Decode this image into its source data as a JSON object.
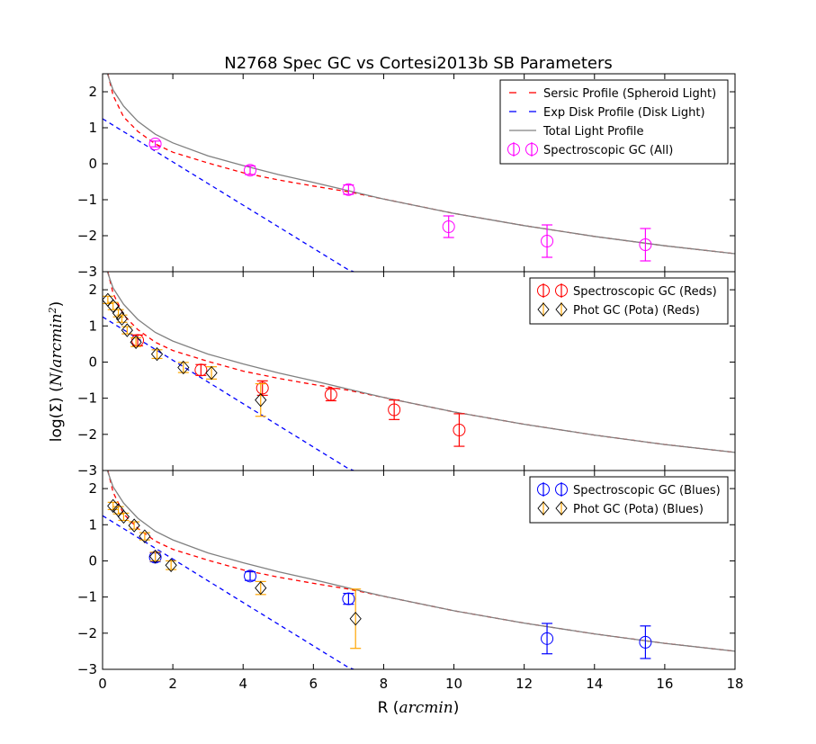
{
  "chart_data": {
    "type": "scatter",
    "title": "N2768 Spec GC vs Cortesi2013b SB Parameters",
    "xlabel": "R (arcmin)",
    "ylabel": "log(Σ) (N/arcmin²)",
    "xlim": [
      0,
      18
    ],
    "ylim": [
      -3,
      2.5
    ],
    "xticks": [
      0,
      2,
      4,
      6,
      8,
      10,
      12,
      14,
      16,
      18
    ],
    "yticks": [
      2,
      1,
      0,
      -1,
      -2,
      -3
    ],
    "grid": false,
    "legend_placement": "top-right",
    "colors": {
      "sersic": "#ff0000",
      "exp_disk": "#0000ff",
      "total": "#808080",
      "spec_all": "#ff00ff",
      "spec_reds": "#ff0000",
      "spec_blues": "#0000ff",
      "phot": "#ffa500"
    },
    "models": {
      "total_light": [
        [
          0.1,
          2.6
        ],
        [
          0.3,
          2.05
        ],
        [
          0.6,
          1.6
        ],
        [
          1,
          1.18
        ],
        [
          1.5,
          0.82
        ],
        [
          2,
          0.58
        ],
        [
          3,
          0.22
        ],
        [
          4,
          -0.05
        ],
        [
          5,
          -0.3
        ],
        [
          6,
          -0.52
        ],
        [
          7,
          -0.75
        ],
        [
          8,
          -0.98
        ],
        [
          10,
          -1.38
        ],
        [
          12,
          -1.72
        ],
        [
          14,
          -2.02
        ],
        [
          16,
          -2.28
        ],
        [
          18,
          -2.5
        ]
      ],
      "sersic": [
        [
          0.15,
          2.5
        ],
        [
          0.3,
          1.9
        ],
        [
          0.6,
          1.3
        ],
        [
          1,
          0.9
        ],
        [
          1.5,
          0.55
        ],
        [
          2,
          0.32
        ],
        [
          3,
          0.02
        ],
        [
          4,
          -0.25
        ],
        [
          5,
          -0.45
        ],
        [
          6,
          -0.62
        ],
        [
          7,
          -0.78
        ],
        [
          8,
          -0.98
        ],
        [
          10,
          -1.38
        ],
        [
          12,
          -1.72
        ],
        [
          14,
          -2.02
        ],
        [
          16,
          -2.28
        ],
        [
          18,
          -2.5
        ]
      ],
      "exp_disk": [
        [
          0,
          1.25
        ],
        [
          1,
          0.65
        ],
        [
          2,
          0.05
        ],
        [
          3,
          -0.55
        ],
        [
          4,
          -1.15
        ],
        [
          5,
          -1.75
        ],
        [
          6,
          -2.35
        ],
        [
          7,
          -2.95
        ],
        [
          7.15,
          -3.0
        ]
      ]
    },
    "panels": [
      {
        "legend": [
          "Sersic Profile (Spheroid Light)",
          "Exp Disk Profile (Disk Light)",
          "Total Light Profile",
          "Spectroscopic GC (All)"
        ],
        "series": [
          {
            "name": "Spectroscopic GC (All)",
            "marker": "circle",
            "color": "#ff00ff",
            "points": [
              [
                1.5,
                0.55,
                0.08
              ],
              [
                4.2,
                -0.18,
                0.12
              ],
              [
                7.0,
                -0.72,
                0.13
              ],
              [
                9.85,
                -1.75,
                0.3
              ],
              [
                12.65,
                -2.15,
                0.45
              ],
              [
                15.45,
                -2.25,
                0.45
              ]
            ]
          }
        ]
      },
      {
        "legend": [
          "Spectroscopic GC (Reds)",
          "Phot GC (Pota) (Reds)"
        ],
        "series": [
          {
            "name": "Spectroscopic GC (Reds)",
            "marker": "circle",
            "color": "#ff0000",
            "points": [
              [
                1.0,
                0.6,
                0.15
              ],
              [
                2.8,
                -0.22,
                0.15
              ],
              [
                4.55,
                -0.72,
                0.2
              ],
              [
                6.5,
                -0.9,
                0.17
              ],
              [
                8.3,
                -1.32,
                0.27
              ],
              [
                10.15,
                -1.88,
                0.45
              ]
            ]
          },
          {
            "name": "Phot GC (Pota) (Reds)",
            "marker": "diamond",
            "color": "#ffa500",
            "points": [
              [
                0.15,
                1.72,
                0.1
              ],
              [
                0.3,
                1.55,
                0.1
              ],
              [
                0.45,
                1.35,
                0.1
              ],
              [
                0.55,
                1.2,
                0.1
              ],
              [
                0.7,
                0.88,
                0.1
              ],
              [
                0.95,
                0.55,
                0.12
              ],
              [
                1.55,
                0.22,
                0.12
              ],
              [
                2.3,
                -0.15,
                0.14
              ],
              [
                3.1,
                -0.3,
                0.17
              ],
              [
                4.5,
                -1.05,
                0.45
              ]
            ]
          }
        ]
      },
      {
        "legend": [
          "Spectroscopic GC (Blues)",
          "Phot GC (Pota) (Blues)"
        ],
        "series": [
          {
            "name": "Spectroscopic GC (Blues)",
            "marker": "circle",
            "color": "#0000ff",
            "points": [
              [
                1.5,
                0.1,
                0.12
              ],
              [
                4.2,
                -0.42,
                0.12
              ],
              [
                7.0,
                -1.05,
                0.15
              ],
              [
                12.65,
                -2.15,
                0.42
              ],
              [
                15.45,
                -2.25,
                0.45
              ]
            ]
          },
          {
            "name": "Phot GC (Pota) (Blues)",
            "marker": "diamond",
            "color": "#ffa500",
            "points": [
              [
                0.3,
                1.52,
                0.1
              ],
              [
                0.45,
                1.4,
                0.1
              ],
              [
                0.6,
                1.22,
                0.1
              ],
              [
                0.9,
                0.98,
                0.1
              ],
              [
                1.2,
                0.68,
                0.1
              ],
              [
                1.5,
                0.12,
                0.12
              ],
              [
                1.95,
                -0.12,
                0.12
              ],
              [
                4.5,
                -0.75,
                0.18
              ],
              [
                7.2,
                -1.6,
                0.82
              ]
            ]
          }
        ]
      }
    ]
  }
}
